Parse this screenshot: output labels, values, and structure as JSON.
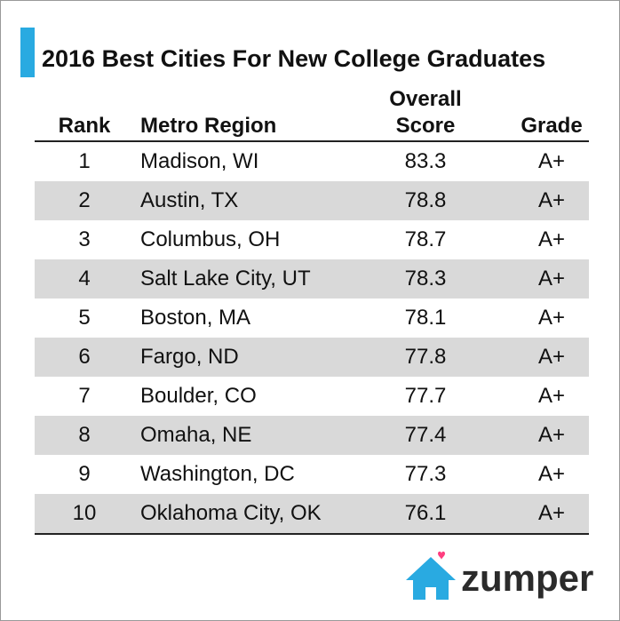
{
  "header": {
    "title": "2016 Best Cities For New College Graduates"
  },
  "table": {
    "columns": [
      "Rank",
      "Metro Region",
      "Overall Score",
      "Grade"
    ],
    "rows": [
      [
        1,
        "Madison, WI",
        83.3,
        "A+"
      ],
      [
        2,
        "Austin, TX",
        78.8,
        "A+"
      ],
      [
        3,
        "Columbus, OH",
        78.7,
        "A+"
      ],
      [
        4,
        "Salt Lake City, UT",
        78.3,
        "A+"
      ],
      [
        5,
        "Boston, MA",
        78.1,
        "A+"
      ],
      [
        6,
        "Fargo, ND",
        77.8,
        "A+"
      ],
      [
        7,
        "Boulder, CO",
        77.7,
        "A+"
      ],
      [
        8,
        "Omaha, NE",
        77.4,
        "A+"
      ],
      [
        9,
        "Washington, DC",
        77.3,
        "A+"
      ],
      [
        10,
        "Oklahoma City, OK",
        76.1,
        "A+"
      ]
    ]
  },
  "logo": {
    "text": "zumper"
  }
}
